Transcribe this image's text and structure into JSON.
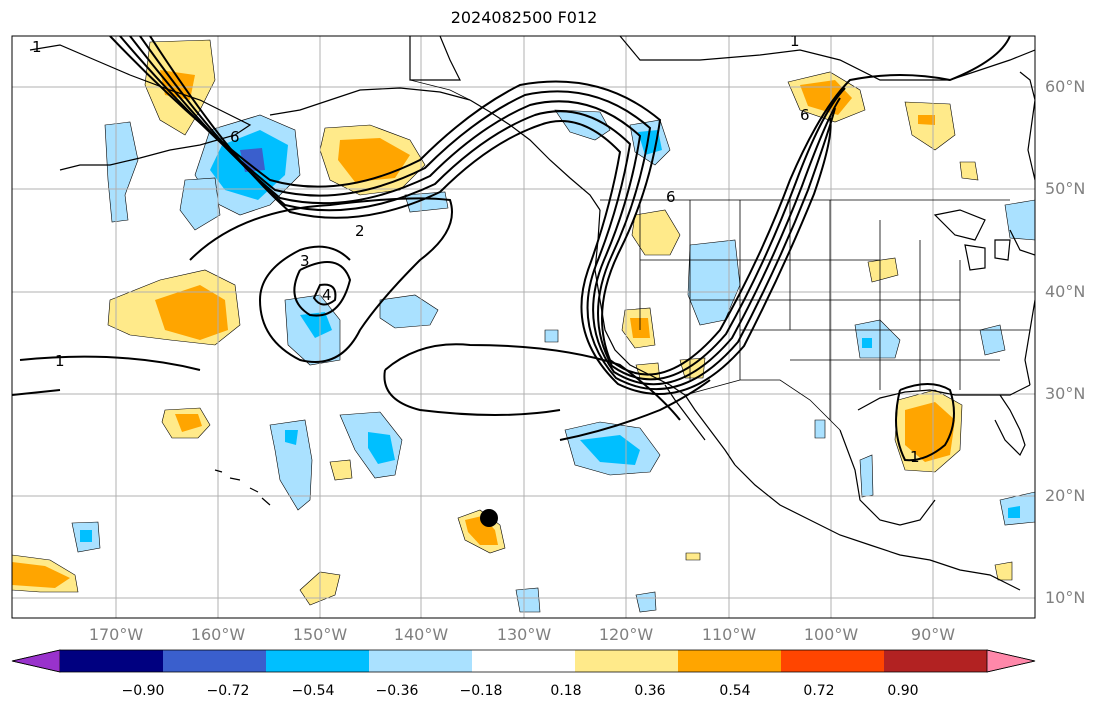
{
  "title": "2024082500 F012",
  "lat_labels": [
    "60°N",
    "50°N",
    "40°N",
    "30°N",
    "20°N",
    "10°N"
  ],
  "lon_labels": [
    "170°W",
    "160°W",
    "150°W",
    "140°W",
    "130°W",
    "120°W",
    "110°W",
    "100°W",
    "90°W"
  ],
  "contour_labels": [
    "1",
    "2",
    "3",
    "4",
    "6",
    "1",
    "1",
    "1",
    "6",
    "6"
  ],
  "colorbar": {
    "colors": [
      "#9932cc",
      "#000080",
      "#3a5fcd",
      "#00bfff",
      "#aae1ff",
      "#ffffff",
      "#ffea8a",
      "#ffa500",
      "#ff4500",
      "#b22222",
      "#ff88aa"
    ],
    "tick_labels": [
      "−0.90",
      "−0.72",
      "−0.54",
      "−0.36",
      "−0.18",
      "0.18",
      "0.36",
      "0.54",
      "0.72",
      "0.90"
    ]
  },
  "colors": {
    "land_line": "#000000",
    "grid": "#b0b0b0",
    "contour": "#000000",
    "storm_marker": "#000000"
  }
}
